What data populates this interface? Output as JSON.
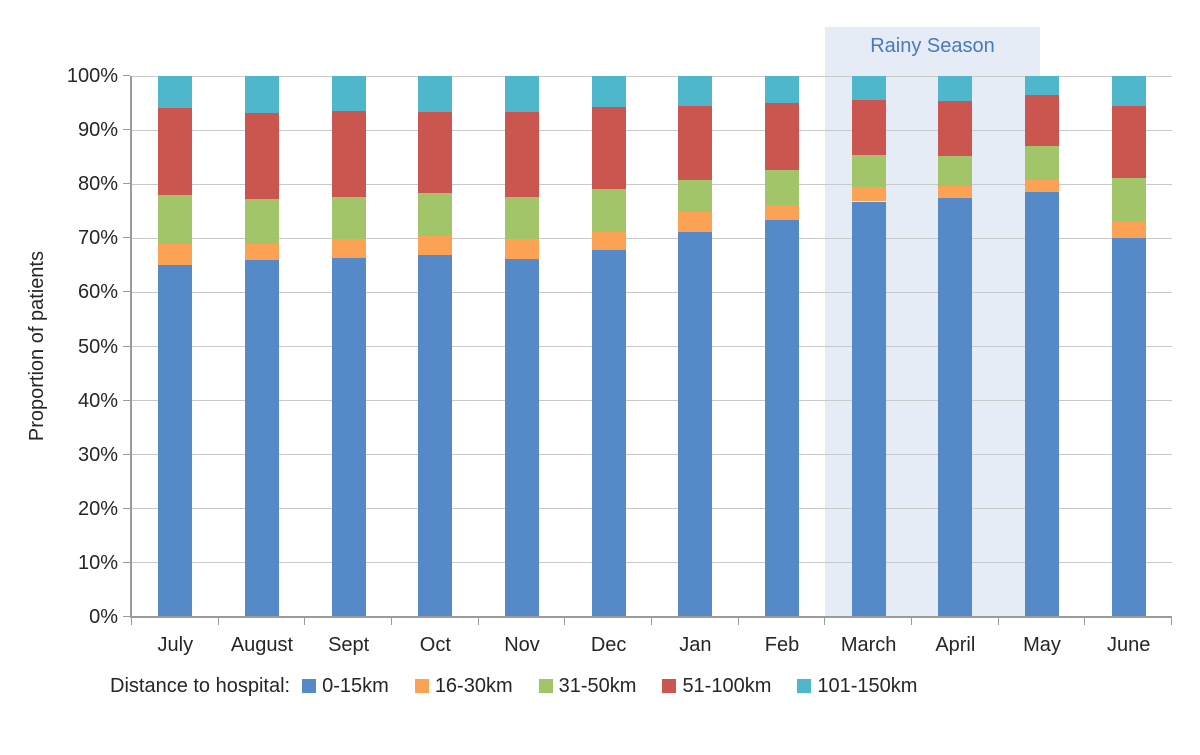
{
  "chart_data": {
    "type": "bar",
    "stacked": true,
    "orientation": "vertical",
    "title": "",
    "xlabel": "",
    "ylabel": "Proportion of patients",
    "ylim": [
      0,
      100
    ],
    "grid": true,
    "y_ticks": [
      "0%",
      "10%",
      "20%",
      "30%",
      "40%",
      "50%",
      "60%",
      "70%",
      "80%",
      "90%",
      "100%"
    ],
    "categories": [
      "July",
      "August",
      "Sept",
      "Oct",
      "Nov",
      "Dec",
      "Jan",
      "Feb",
      "March",
      "April",
      "May",
      "June"
    ],
    "series": [
      {
        "name": "0-15km",
        "color": "#5589C7",
        "values": [
          65.0,
          66.0,
          66.3,
          67.0,
          66.1,
          67.8,
          71.2,
          73.3,
          76.8,
          77.4,
          78.6,
          70.0
        ]
      },
      {
        "name": "16-30km",
        "color": "#FBA255",
        "values": [
          4.0,
          3.0,
          3.5,
          3.5,
          3.7,
          3.4,
          3.6,
          2.8,
          2.7,
          2.3,
          2.2,
          3.0
        ]
      },
      {
        "name": "31-50km",
        "color": "#A1C568",
        "values": [
          9.0,
          8.2,
          7.9,
          7.9,
          7.8,
          8.0,
          5.9,
          6.5,
          5.9,
          5.5,
          6.2,
          8.2
        ]
      },
      {
        "name": "51-100km",
        "color": "#CB564F",
        "values": [
          16.0,
          15.9,
          15.8,
          15.0,
          15.8,
          15.1,
          13.7,
          12.5,
          10.2,
          10.1,
          9.4,
          13.3
        ]
      },
      {
        "name": "101-150km",
        "color": "#4FB7CB",
        "values": [
          6.0,
          6.9,
          6.5,
          6.6,
          6.6,
          5.7,
          5.6,
          4.9,
          4.4,
          4.7,
          3.6,
          5.5
        ]
      }
    ],
    "legend": {
      "label": "Distance to hospital:",
      "position": "bottom"
    },
    "annotation": {
      "label": "Rainy Season",
      "covers": "March to mid-May",
      "fill_color": "#E6ECF5",
      "text_color": "#4A79BC"
    },
    "colors": {
      "gridline": "#C9C9C9",
      "axis": "#9B9B9B",
      "text": "#262626",
      "background": "#FFFFFF"
    }
  }
}
